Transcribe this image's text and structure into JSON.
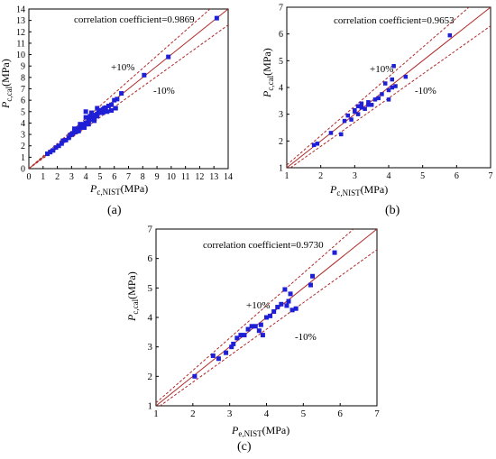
{
  "chart_data": [
    {
      "type": "scatter",
      "panel": "(a)",
      "xlim": [
        0,
        14
      ],
      "ylim": [
        0,
        14
      ],
      "xticks": [
        0,
        1,
        2,
        3,
        4,
        5,
        6,
        7,
        8,
        9,
        10,
        11,
        12,
        13,
        14
      ],
      "yticks": [
        0,
        1,
        2,
        3,
        4,
        5,
        6,
        7,
        8,
        9,
        10,
        11,
        12,
        13,
        14
      ],
      "xlabel_main": "P",
      "xlabel_sub": "c,NIST",
      "xlabel_unit": "(MPa)",
      "ylabel_main": "P",
      "ylabel_sub": "c,cal",
      "ylabel_unit": "(MPa)",
      "annotation": "correlation coefficient=0.9869",
      "band_upper_label": "+10%",
      "band_lower_label": "-10%",
      "points": [
        [
          1.3,
          1.3
        ],
        [
          1.5,
          1.45
        ],
        [
          1.7,
          1.6
        ],
        [
          1.9,
          1.85
        ],
        [
          2.1,
          2.0
        ],
        [
          2.3,
          2.2
        ],
        [
          2.4,
          2.45
        ],
        [
          2.6,
          2.5
        ],
        [
          2.8,
          2.7
        ],
        [
          2.9,
          2.95
        ],
        [
          3.0,
          3.0
        ],
        [
          3.1,
          3.1
        ],
        [
          3.2,
          3.2
        ],
        [
          3.3,
          3.25
        ],
        [
          3.4,
          3.3
        ],
        [
          3.5,
          3.5
        ],
        [
          3.6,
          3.6
        ],
        [
          3.7,
          3.65
        ],
        [
          3.8,
          3.8
        ],
        [
          3.9,
          3.9
        ],
        [
          4.0,
          4.0
        ],
        [
          4.1,
          4.05
        ],
        [
          4.2,
          4.2
        ],
        [
          4.3,
          4.3
        ],
        [
          4.4,
          4.4
        ],
        [
          4.5,
          4.5
        ],
        [
          4.6,
          4.55
        ],
        [
          4.7,
          4.7
        ],
        [
          4.8,
          4.8
        ],
        [
          4.9,
          4.9
        ],
        [
          5.0,
          5.0
        ],
        [
          5.1,
          5.1
        ],
        [
          5.2,
          5.2
        ],
        [
          5.3,
          5.3
        ],
        [
          5.4,
          5.35
        ],
        [
          5.6,
          5.5
        ],
        [
          5.8,
          5.6
        ],
        [
          6.0,
          6.0
        ],
        [
          6.2,
          6.1
        ],
        [
          6.5,
          6.6
        ],
        [
          3.2,
          3.5
        ],
        [
          3.6,
          3.9
        ],
        [
          4.0,
          4.5
        ],
        [
          4.0,
          5.0
        ],
        [
          4.3,
          4.6
        ],
        [
          4.6,
          4.2
        ],
        [
          4.8,
          4.6
        ],
        [
          5.2,
          4.9
        ],
        [
          5.5,
          5.0
        ],
        [
          5.8,
          5.1
        ],
        [
          3.5,
          3.3
        ],
        [
          3.9,
          3.6
        ],
        [
          4.2,
          3.9
        ],
        [
          4.5,
          4.3
        ],
        [
          4.4,
          4.9
        ],
        [
          4.8,
          5.3
        ],
        [
          8.1,
          8.2
        ],
        [
          9.8,
          9.8
        ],
        [
          13.2,
          13.2
        ],
        [
          6.1,
          5.3
        ]
      ]
    },
    {
      "type": "scatter",
      "panel": "(b)",
      "xlim": [
        1,
        7
      ],
      "ylim": [
        1,
        7
      ],
      "xticks": [
        1,
        2,
        3,
        4,
        5,
        6,
        7
      ],
      "yticks": [
        1,
        2,
        3,
        4,
        5,
        6,
        7
      ],
      "xlabel_main": "P",
      "xlabel_sub": "c,NIST",
      "xlabel_unit": "(MPa)",
      "ylabel_main": "P",
      "ylabel_sub": "c,cal",
      "ylabel_unit": "(MPa)",
      "annotation": "correlation coefficient=0.9653",
      "band_upper_label": "+10%",
      "band_lower_label": "-10%",
      "points": [
        [
          1.8,
          1.85
        ],
        [
          1.9,
          1.9
        ],
        [
          2.3,
          2.3
        ],
        [
          2.6,
          2.25
        ],
        [
          2.7,
          2.75
        ],
        [
          2.8,
          2.95
        ],
        [
          2.9,
          2.8
        ],
        [
          3.0,
          3.1
        ],
        [
          3.0,
          3.15
        ],
        [
          3.1,
          3.0
        ],
        [
          3.1,
          3.3
        ],
        [
          3.2,
          3.25
        ],
        [
          3.2,
          3.4
        ],
        [
          3.3,
          3.2
        ],
        [
          3.4,
          3.35
        ],
        [
          3.4,
          3.45
        ],
        [
          3.5,
          3.35
        ],
        [
          3.6,
          3.55
        ],
        [
          3.7,
          3.6
        ],
        [
          3.8,
          3.75
        ],
        [
          3.9,
          4.15
        ],
        [
          4.0,
          3.55
        ],
        [
          4.0,
          3.9
        ],
        [
          4.1,
          4.0
        ],
        [
          4.1,
          4.3
        ],
        [
          4.15,
          4.8
        ],
        [
          4.2,
          4.05
        ],
        [
          4.5,
          4.4
        ],
        [
          5.8,
          5.95
        ]
      ]
    },
    {
      "type": "scatter",
      "panel": "(c)",
      "xlim": [
        1,
        7
      ],
      "ylim": [
        1,
        7
      ],
      "xticks": [
        1,
        2,
        3,
        4,
        5,
        6,
        7
      ],
      "yticks": [
        1,
        2,
        3,
        4,
        5,
        6,
        7
      ],
      "xlabel_main": "P",
      "xlabel_sub": "e,NIST",
      "xlabel_unit": "(MPa)",
      "ylabel_main": "P",
      "ylabel_sub": "c,cal",
      "ylabel_unit": "(MPa)",
      "annotation": "correlation coefficient=0.9730",
      "band_upper_label": "+10%",
      "band_lower_label": "-10%",
      "points": [
        [
          2.05,
          2.0
        ],
        [
          2.55,
          2.7
        ],
        [
          2.7,
          2.6
        ],
        [
          2.9,
          2.8
        ],
        [
          3.05,
          3.0
        ],
        [
          3.1,
          3.1
        ],
        [
          3.2,
          3.3
        ],
        [
          3.3,
          3.4
        ],
        [
          3.4,
          3.4
        ],
        [
          3.5,
          3.6
        ],
        [
          3.6,
          3.7
        ],
        [
          3.7,
          3.7
        ],
        [
          3.8,
          3.55
        ],
        [
          3.85,
          3.75
        ],
        [
          3.9,
          3.4
        ],
        [
          4.0,
          4.0
        ],
        [
          4.1,
          4.05
        ],
        [
          4.2,
          4.2
        ],
        [
          4.3,
          4.35
        ],
        [
          4.4,
          4.45
        ],
        [
          4.5,
          4.95
        ],
        [
          4.55,
          4.4
        ],
        [
          4.6,
          4.55
        ],
        [
          4.65,
          4.8
        ],
        [
          4.7,
          4.25
        ],
        [
          4.8,
          4.3
        ],
        [
          5.2,
          5.1
        ],
        [
          5.25,
          5.4
        ],
        [
          5.85,
          6.2
        ]
      ]
    }
  ],
  "panel_labels": [
    "(a)",
    "(b)",
    "(c)"
  ],
  "colors": {
    "marker": "#1f1fd6",
    "identity_line": "#b02a2a",
    "band_line": "#b02a2a",
    "axis": "#000000"
  }
}
